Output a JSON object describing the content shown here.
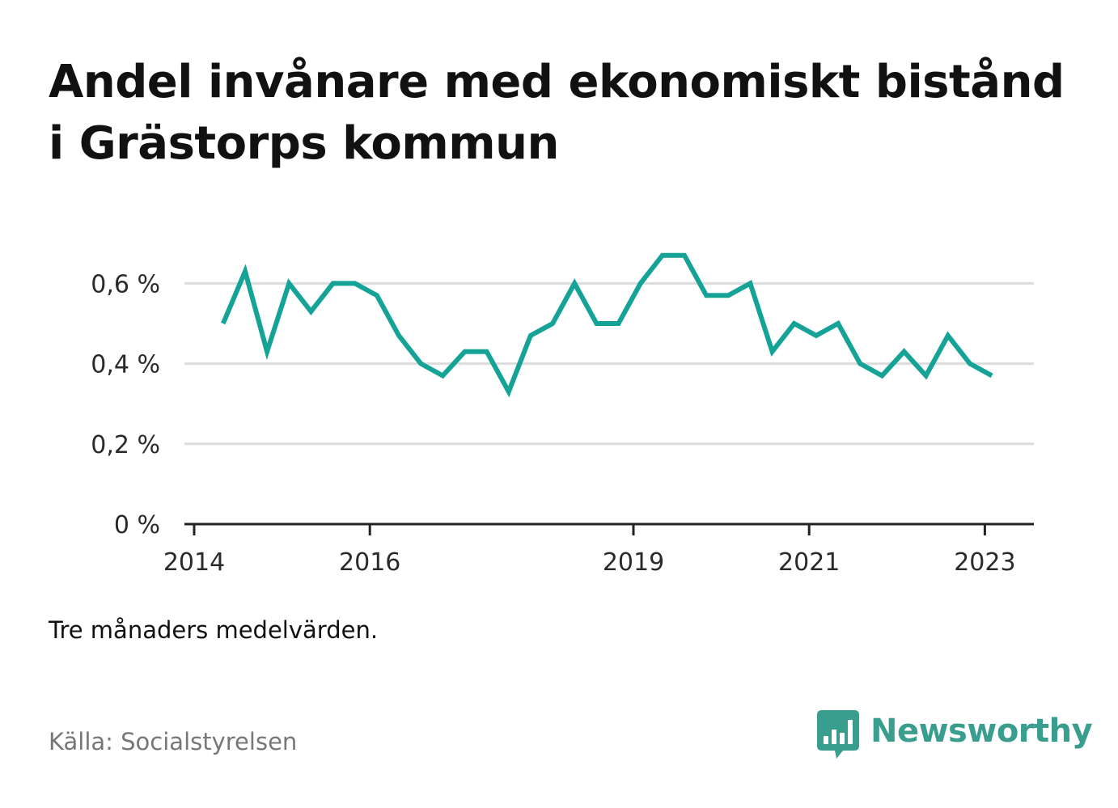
{
  "title": "Andel invånare med ekonomiskt bistånd i Grästorps kommun",
  "note": "Tre månaders medelvärden.",
  "source": "Källa: Socialstyrelsen",
  "logo": {
    "text": "Newsworthy",
    "icon": "bar-chart-speech-bubble-icon"
  },
  "colors": {
    "line": "#14a396",
    "grid": "#dddddd",
    "axis": "#222222",
    "logo": "#3a9e8f"
  },
  "chart_data": {
    "type": "line",
    "title": "Andel invånare med ekonomiskt bistånd i Grästorps kommun",
    "xlabel": "",
    "ylabel": "",
    "ylim": [
      0,
      0.7
    ],
    "yticks": [
      0,
      0.2,
      0.4,
      0.6
    ],
    "ytick_labels": [
      "0 %",
      "0,2 %",
      "0,4 %",
      "0,6 %"
    ],
    "xlim": [
      2014.0,
      2023.5
    ],
    "xticks": [
      2014,
      2016,
      2019,
      2021,
      2023
    ],
    "xtick_labels": [
      "2014",
      "2016",
      "2019",
      "2021",
      "2023"
    ],
    "grid": true,
    "series": [
      {
        "name": "",
        "x": [
          2014.33,
          2014.58,
          2014.83,
          2015.08,
          2015.33,
          2015.58,
          2015.83,
          2016.08,
          2016.33,
          2016.58,
          2016.83,
          2017.08,
          2017.33,
          2017.58,
          2017.83,
          2018.08,
          2018.33,
          2018.58,
          2018.83,
          2019.08,
          2019.33,
          2019.58,
          2019.83,
          2020.08,
          2020.33,
          2020.58,
          2020.83,
          2021.08,
          2021.33,
          2021.58,
          2021.83,
          2022.08,
          2022.33,
          2022.58,
          2022.83,
          2023.08
        ],
        "values": [
          0.5,
          0.63,
          0.43,
          0.6,
          0.53,
          0.6,
          0.6,
          0.57,
          0.47,
          0.4,
          0.37,
          0.43,
          0.43,
          0.33,
          0.47,
          0.5,
          0.6,
          0.5,
          0.5,
          0.6,
          0.67,
          0.67,
          0.57,
          0.57,
          0.6,
          0.43,
          0.5,
          0.47,
          0.5,
          0.4,
          0.37,
          0.43,
          0.37,
          0.47,
          0.4,
          0.37
        ]
      }
    ]
  }
}
